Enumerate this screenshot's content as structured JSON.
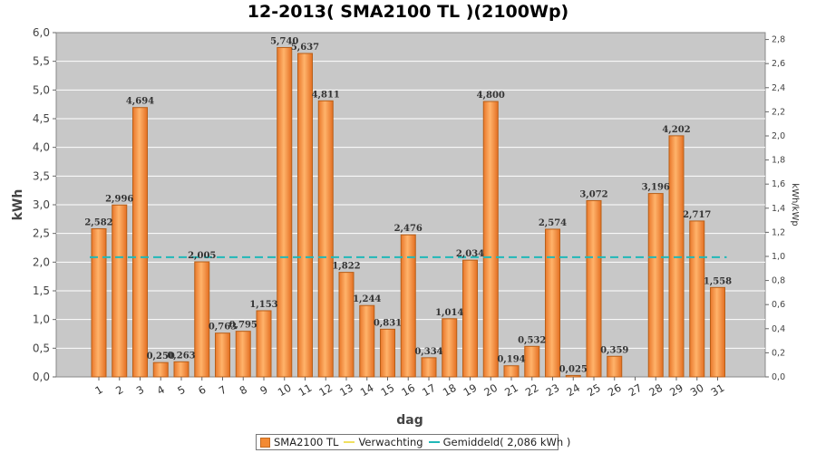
{
  "chart_data": {
    "type": "bar",
    "title": "12-2013( SMA2100 TL )(2100Wp)",
    "xlabel": "dag",
    "ylabel": "kWh",
    "ylabel_right": "kWh/kWp",
    "ylim": [
      0,
      6.0
    ],
    "ylim_right": [
      0,
      2.857
    ],
    "yticks": [
      "0,0",
      "0,5",
      "1,0",
      "1,5",
      "2,0",
      "2,5",
      "3,0",
      "3,5",
      "4,0",
      "4,5",
      "5,0",
      "5,5",
      "6,0"
    ],
    "yticks_right": [
      "0,0",
      "0,2",
      "0,4",
      "0,6",
      "0,8",
      "1,0",
      "1,2",
      "1,4",
      "1,6",
      "1,8",
      "2,0",
      "2,2",
      "2,4",
      "2,6",
      "2,8"
    ],
    "categories": [
      "1",
      "2",
      "3",
      "4",
      "5",
      "6",
      "7",
      "8",
      "9",
      "10",
      "11",
      "12",
      "13",
      "14",
      "15",
      "16",
      "17",
      "18",
      "19",
      "20",
      "21",
      "22",
      "23",
      "24",
      "25",
      "26",
      "27",
      "28",
      "29",
      "30",
      "31"
    ],
    "series": [
      {
        "name": "SMA2100 TL",
        "color": "#f38a33",
        "values": [
          2.582,
          2.996,
          4.694,
          0.25,
          0.263,
          2.005,
          0.763,
          0.795,
          1.153,
          5.74,
          5.637,
          4.811,
          1.822,
          1.244,
          0.831,
          2.476,
          0.334,
          1.014,
          2.034,
          4.8,
          0.194,
          0.532,
          2.574,
          0.025,
          3.072,
          0.359,
          0,
          3.196,
          4.202,
          2.717,
          1.558
        ],
        "labels": [
          "2,582",
          "2,996",
          "4,694",
          "0,250",
          "0,263",
          "2,005",
          "0,763",
          "0,795",
          "1,153",
          "5,740",
          "5,637",
          "4,811",
          "1,822",
          "1,244",
          "0,831",
          "2,476",
          "0,334",
          "1,014",
          "2,034",
          "4,800",
          "0,194",
          "0,532",
          "2,574",
          "0,025",
          "3,072",
          "0,359",
          "",
          "3,196",
          "4,202",
          "2,717",
          "1,558"
        ]
      }
    ],
    "average": {
      "name": "Gemiddeld( 2,086 kWh )",
      "value": 2.086,
      "color": "#20b8b8"
    },
    "legend": {
      "bar_label": "SMA2100 TL",
      "expected_label": "Verwachting",
      "expected_color": "#f0e060",
      "average_label": "Gemiddeld( 2,086 kWh )"
    },
    "plot_background": "#c8c8c8",
    "grid": true
  }
}
